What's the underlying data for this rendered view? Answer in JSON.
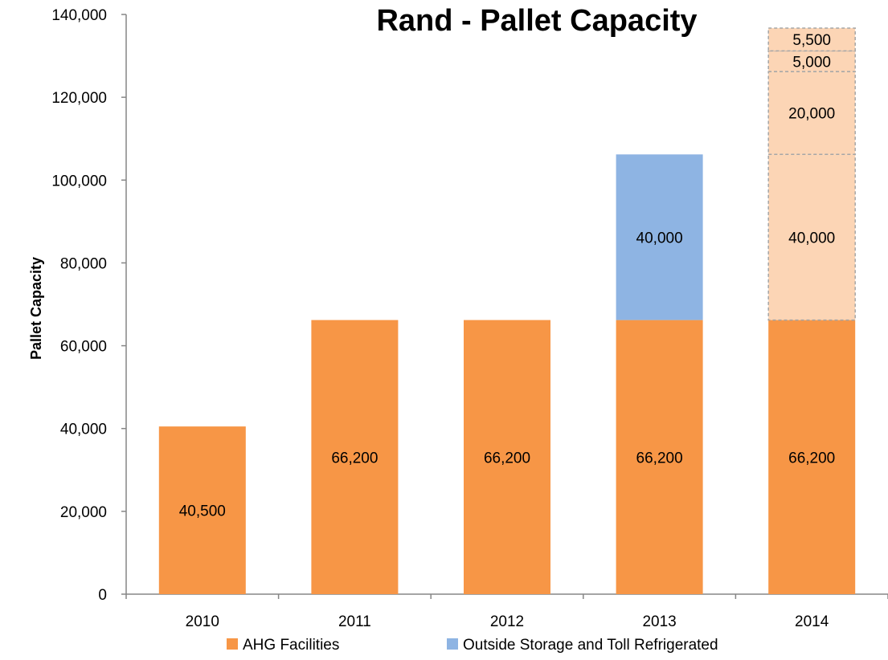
{
  "chart_data": {
    "type": "bar",
    "stacked": true,
    "title": "Rand - Pallet Capacity",
    "xlabel": "",
    "ylabel": "Pallet Capacity",
    "ylim": [
      0,
      140000
    ],
    "yticks": [
      0,
      20000,
      40000,
      60000,
      80000,
      100000,
      120000,
      140000
    ],
    "ytick_labels": [
      "0",
      "20,000",
      "40,000",
      "60,000",
      "80,000",
      "100,000",
      "120,000",
      "140,000"
    ],
    "categories": [
      "2010",
      "2011",
      "2012",
      "2013",
      "2014"
    ],
    "grid": false,
    "legend_position": "bottom",
    "legend": [
      {
        "label": "AHG Facilities",
        "color": "#f79646"
      },
      {
        "label": "Outside Storage and Toll Refrigerated",
        "color": "#8eb4e3"
      }
    ],
    "series": [
      {
        "name": "AHG Facilities",
        "color": "#f79646",
        "values": [
          40500,
          66200,
          66200,
          66200,
          66200
        ],
        "labels": [
          "40,500",
          "66,200",
          "66,200",
          "66,200",
          "66,200"
        ]
      },
      {
        "name": "Outside Storage and Toll Refrigerated",
        "color": "#8eb4e3",
        "values": [
          0,
          0,
          0,
          40000,
          0
        ],
        "labels": [
          "",
          "",
          "",
          "40,000",
          ""
        ]
      }
    ],
    "planned_segments": {
      "category": "2014",
      "color": "#fcd5b5",
      "border_color": "#a6a6a6",
      "values": [
        40000,
        20000,
        5000,
        5500
      ],
      "labels": [
        "40,000",
        "20,000",
        "5,000",
        "5,500"
      ]
    }
  }
}
